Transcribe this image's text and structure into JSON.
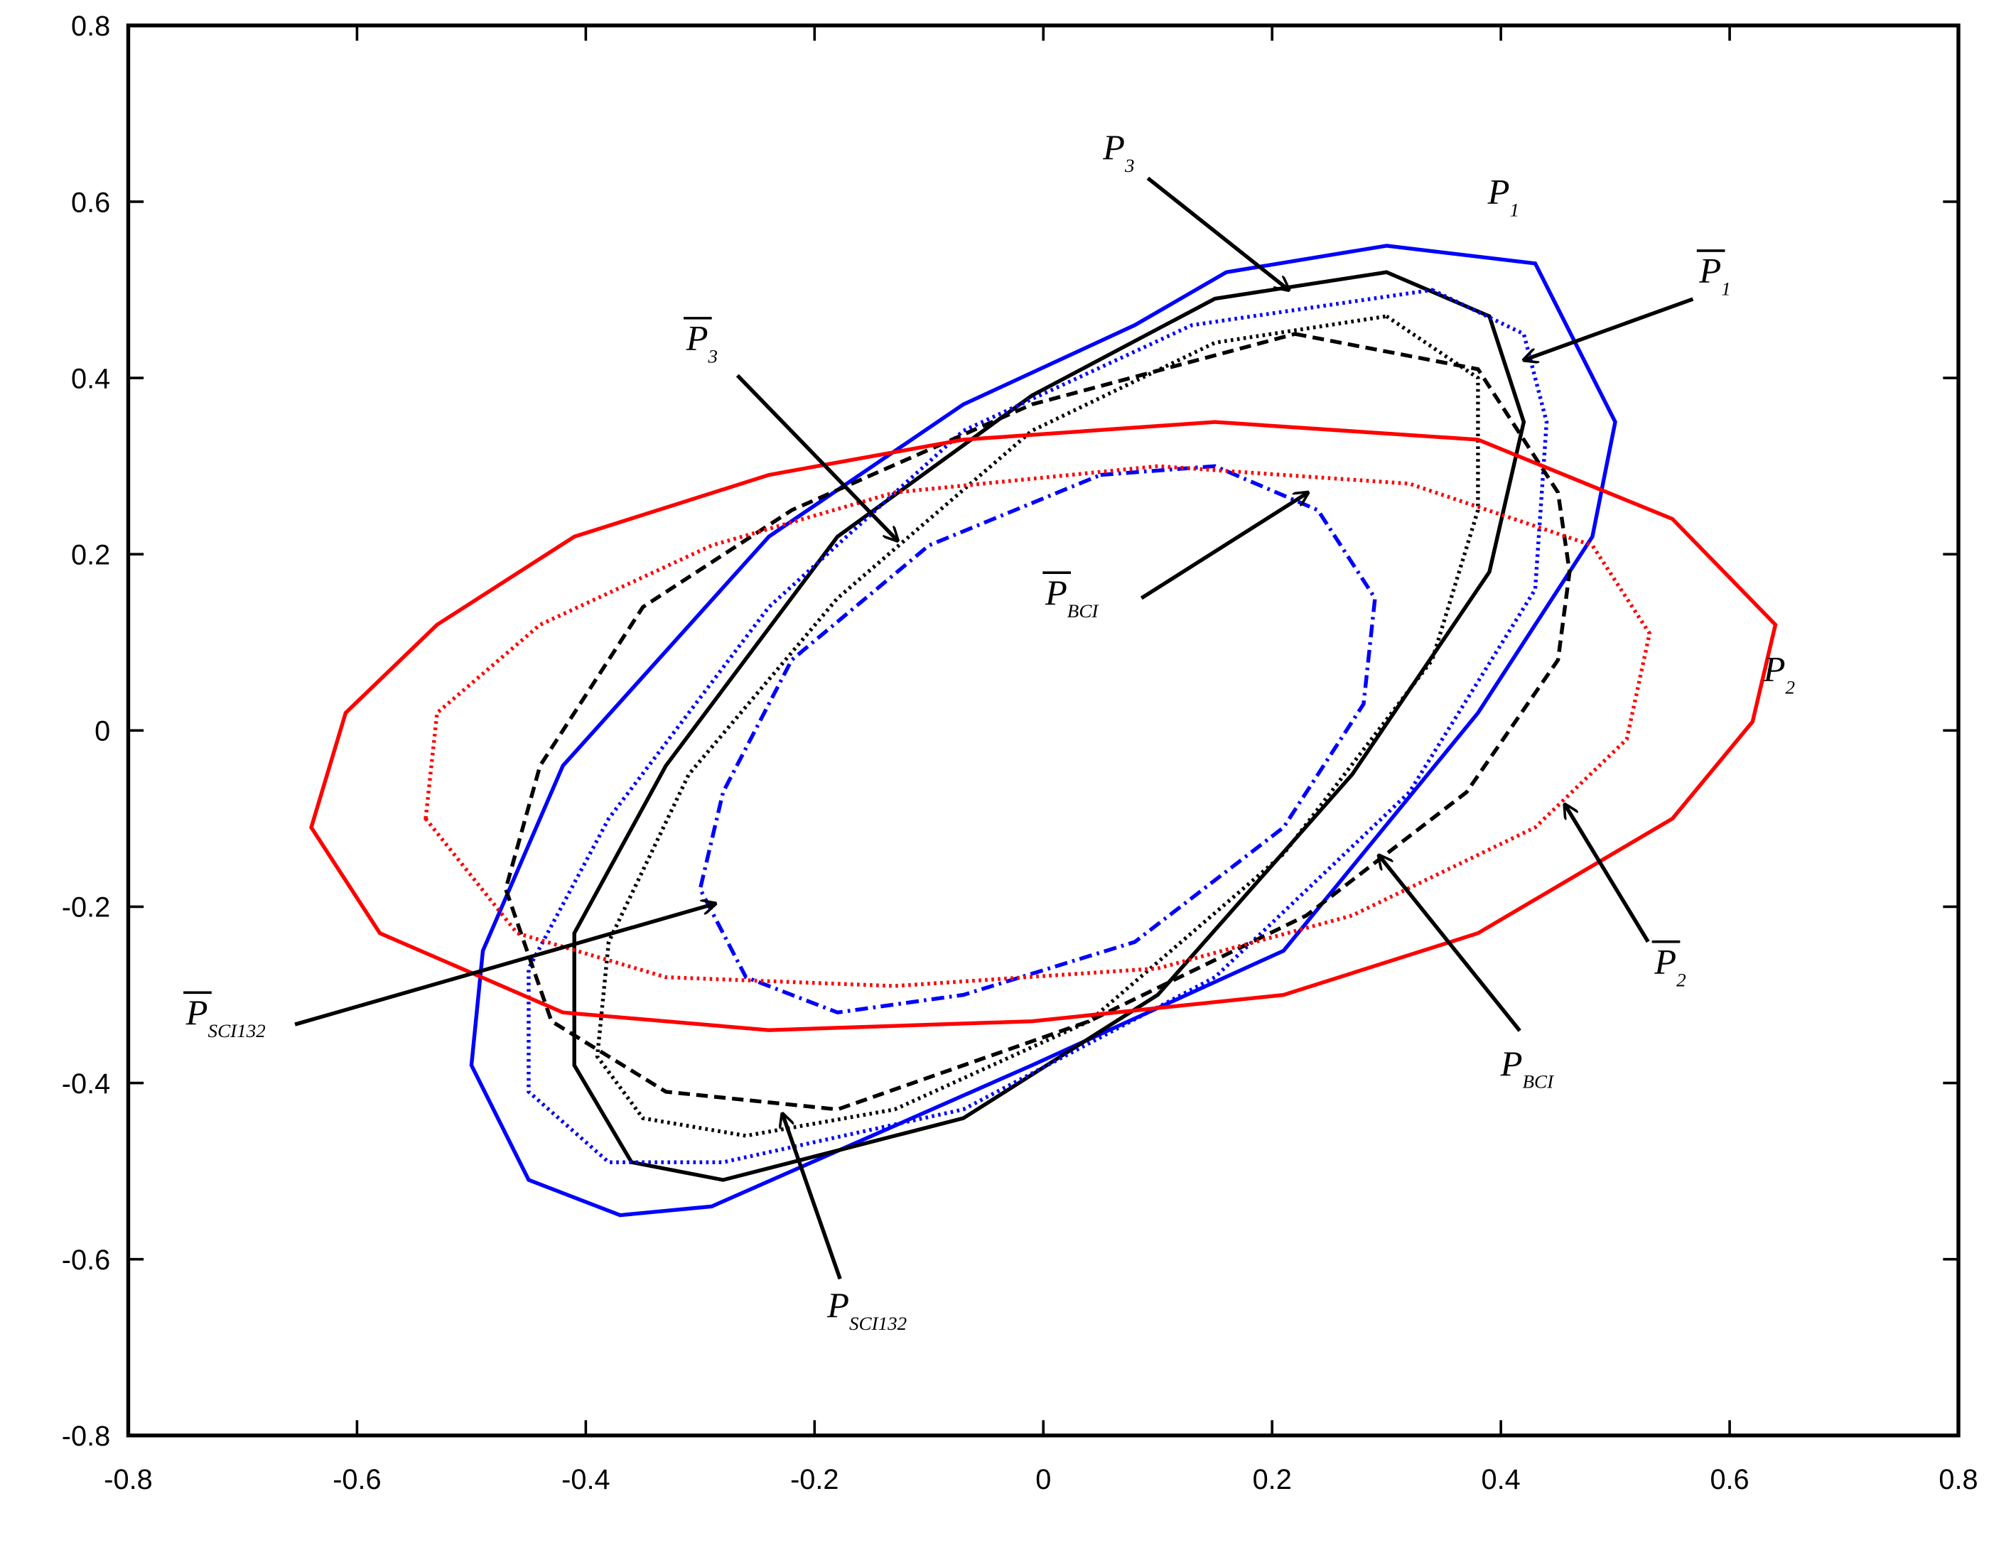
{
  "chart_data": {
    "type": "line",
    "xlim": [
      -0.8,
      0.8
    ],
    "ylim": [
      -0.8,
      0.8
    ],
    "xticks": [
      -0.8,
      -0.6,
      -0.4,
      -0.2,
      0,
      0.2,
      0.4,
      0.6,
      0.8
    ],
    "yticks": [
      -0.8,
      -0.6,
      -0.4,
      -0.2,
      0,
      0.2,
      0.4,
      0.6,
      0.8
    ],
    "closed": true,
    "series": [
      {
        "color": "#0000ff",
        "style": "solid",
        "x": [
          0.3,
          0.43,
          0.5,
          0.48,
          0.38,
          0.21,
          -0.01,
          -0.29,
          -0.37,
          -0.45,
          -0.5,
          -0.49,
          -0.42,
          -0.24,
          -0.07,
          0.08,
          0.16
        ],
        "y": [
          0.55,
          0.53,
          0.35,
          0.22,
          0.02,
          -0.25,
          -0.38,
          -0.54,
          -0.55,
          -0.51,
          -0.38,
          -0.25,
          -0.04,
          0.22,
          0.37,
          0.46,
          0.52
        ]
      },
      {
        "color": "#000000",
        "style": "solid",
        "x": [
          0.3,
          0.39,
          0.42,
          0.39,
          0.27,
          0.1,
          -0.07,
          -0.28,
          -0.36,
          -0.41,
          -0.41,
          -0.33,
          -0.18,
          -0.01,
          0.15
        ],
        "y": [
          0.52,
          0.47,
          0.35,
          0.18,
          -0.05,
          -0.3,
          -0.44,
          -0.51,
          -0.49,
          -0.38,
          -0.23,
          -0.04,
          0.22,
          0.38,
          0.49
        ]
      },
      {
        "color": "#0000ff",
        "style": "dotted",
        "x": [
          0.34,
          0.42,
          0.44,
          0.43,
          0.32,
          0.15,
          -0.07,
          -0.28,
          -0.38,
          -0.45,
          -0.45,
          -0.38,
          -0.24,
          -0.07,
          0.13
        ],
        "y": [
          0.5,
          0.45,
          0.35,
          0.16,
          -0.07,
          -0.28,
          -0.43,
          -0.49,
          -0.49,
          -0.41,
          -0.27,
          -0.1,
          0.14,
          0.34,
          0.46
        ]
      },
      {
        "color": "#000000",
        "style": "dotted",
        "x": [
          0.3,
          0.38,
          0.38,
          0.34,
          0.21,
          0.04,
          -0.13,
          -0.26,
          -0.35,
          -0.39,
          -0.38,
          -0.31,
          -0.18,
          -0.01,
          0.15
        ],
        "y": [
          0.47,
          0.4,
          0.25,
          0.08,
          -0.14,
          -0.33,
          -0.43,
          -0.46,
          -0.44,
          -0.37,
          -0.24,
          -0.05,
          0.15,
          0.34,
          0.44
        ]
      },
      {
        "color": "#000000",
        "style": "dashed",
        "x": [
          0.22,
          0.38,
          0.45,
          0.46,
          0.45,
          0.37,
          0.23,
          0.04,
          -0.18,
          -0.33,
          -0.43,
          -0.47,
          -0.44,
          -0.35,
          -0.22,
          -0.01
        ],
        "y": [
          0.45,
          0.41,
          0.27,
          0.18,
          0.08,
          -0.07,
          -0.21,
          -0.33,
          -0.43,
          -0.41,
          -0.33,
          -0.18,
          -0.04,
          0.14,
          0.25,
          0.37
        ]
      },
      {
        "color": "#0000ff",
        "style": "dashdot",
        "x": [
          0.05,
          0.15,
          0.24,
          0.29,
          0.28,
          0.21,
          0.08,
          -0.07,
          -0.18,
          -0.26,
          -0.3,
          -0.28,
          -0.22,
          -0.1
        ],
        "y": [
          0.29,
          0.3,
          0.25,
          0.15,
          0.03,
          -0.11,
          -0.24,
          -0.3,
          -0.32,
          -0.28,
          -0.18,
          -0.07,
          0.08,
          0.21
        ]
      },
      {
        "color": "#ff0000",
        "style": "solid",
        "x": [
          -0.64,
          -0.61,
          -0.53,
          -0.41,
          -0.24,
          -0.07,
          0.15,
          0.38,
          0.55,
          0.64,
          0.62,
          0.55,
          0.38,
          0.21,
          -0.01,
          -0.24,
          -0.42,
          -0.58
        ],
        "y": [
          -0.11,
          0.02,
          0.12,
          0.22,
          0.29,
          0.33,
          0.35,
          0.33,
          0.24,
          0.12,
          0.01,
          -0.1,
          -0.23,
          -0.3,
          -0.33,
          -0.34,
          -0.32,
          -0.23
        ]
      },
      {
        "color": "#ff0000",
        "style": "dotted",
        "x": [
          -0.54,
          -0.53,
          -0.44,
          -0.29,
          -0.13,
          0.1,
          0.32,
          0.48,
          0.53,
          0.51,
          0.43,
          0.27,
          0.1,
          -0.13,
          -0.33,
          -0.46
        ],
        "y": [
          -0.1,
          0.02,
          0.12,
          0.21,
          0.27,
          0.3,
          0.28,
          0.21,
          0.11,
          -0.01,
          -0.11,
          -0.21,
          -0.27,
          -0.29,
          -0.28,
          -0.23
        ]
      }
    ],
    "annotations": [
      {
        "text": "P",
        "sub": "3",
        "bar": false
      },
      {
        "text": "P",
        "sub": "1",
        "bar": false
      },
      {
        "text": "P",
        "sub": "1",
        "bar": true
      },
      {
        "text": "P",
        "sub": "3",
        "bar": true
      },
      {
        "text": "P",
        "sub": "BCI",
        "bar": true
      },
      {
        "text": "P",
        "sub": "2",
        "bar": false
      },
      {
        "text": "P",
        "sub": "2",
        "bar": true
      },
      {
        "text": "P",
        "sub": "BCI",
        "bar": false
      },
      {
        "text": "P",
        "sub": "SCI132",
        "bar": true
      },
      {
        "text": "P",
        "sub": "SCI132",
        "bar": false
      }
    ]
  }
}
